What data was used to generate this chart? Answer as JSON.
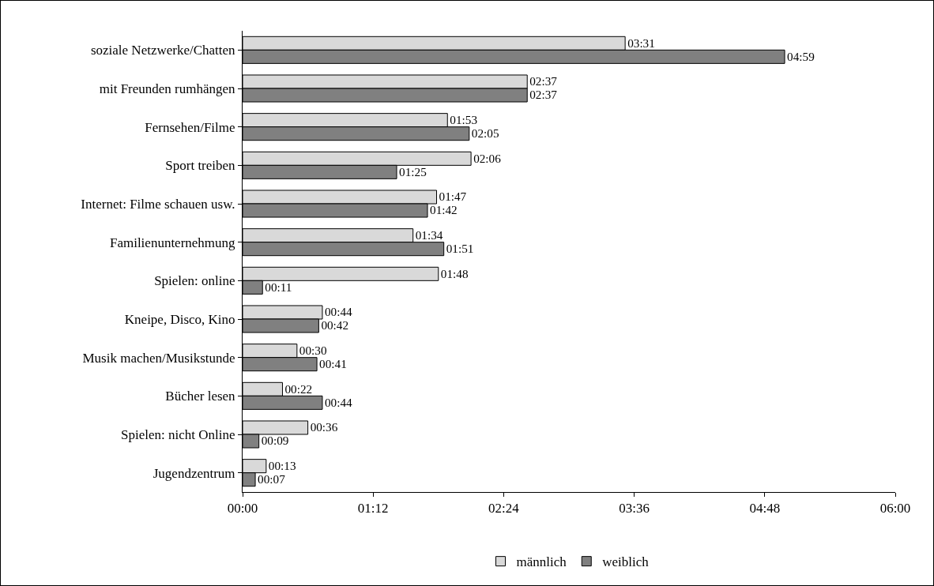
{
  "chart_data": {
    "type": "bar",
    "orientation": "horizontal",
    "legend": "bottom",
    "grid": false,
    "categories": [
      "soziale Netzwerke/Chatten",
      "mit Freunden rumhängen",
      "Fernsehen/Filme",
      "Sport treiben",
      "Internet: Filme schauen usw.",
      "Familienunternehmung",
      "Spielen: online",
      "Kneipe, Disco, Kino",
      "Musik machen/Musikstunde",
      "Bücher lesen",
      "Spielen: nicht Online",
      "Jugendzentrum"
    ],
    "series": [
      {
        "name": "männlich",
        "color": "#d9d9d9",
        "values": [
          211,
          157,
          113,
          126,
          107,
          94,
          108,
          44,
          30,
          22,
          36,
          13
        ],
        "value_labels": [
          "03:31",
          "02:37",
          "01:53",
          "02:06",
          "01:47",
          "01:34",
          "01:48",
          "00:44",
          "00:30",
          "00:22",
          "00:36",
          "00:13"
        ]
      },
      {
        "name": "weiblich",
        "color": "#808080",
        "values": [
          299,
          157,
          125,
          85,
          102,
          111,
          11,
          42,
          41,
          44,
          9,
          7
        ],
        "value_labels": [
          "04:59",
          "02:37",
          "02:05",
          "01:25",
          "01:42",
          "01:51",
          "00:11",
          "00:42",
          "00:41",
          "00:44",
          "00:09",
          "00:07"
        ]
      }
    ],
    "xlim": [
      0,
      360
    ],
    "xticks": [
      {
        "value": 0,
        "label": "00:00"
      },
      {
        "value": 72,
        "label": "01:12"
      },
      {
        "value": 144,
        "label": "02:24"
      },
      {
        "value": 216,
        "label": "03:36"
      },
      {
        "value": 288,
        "label": "04:48"
      },
      {
        "value": 360,
        "label": "06:00"
      }
    ]
  }
}
